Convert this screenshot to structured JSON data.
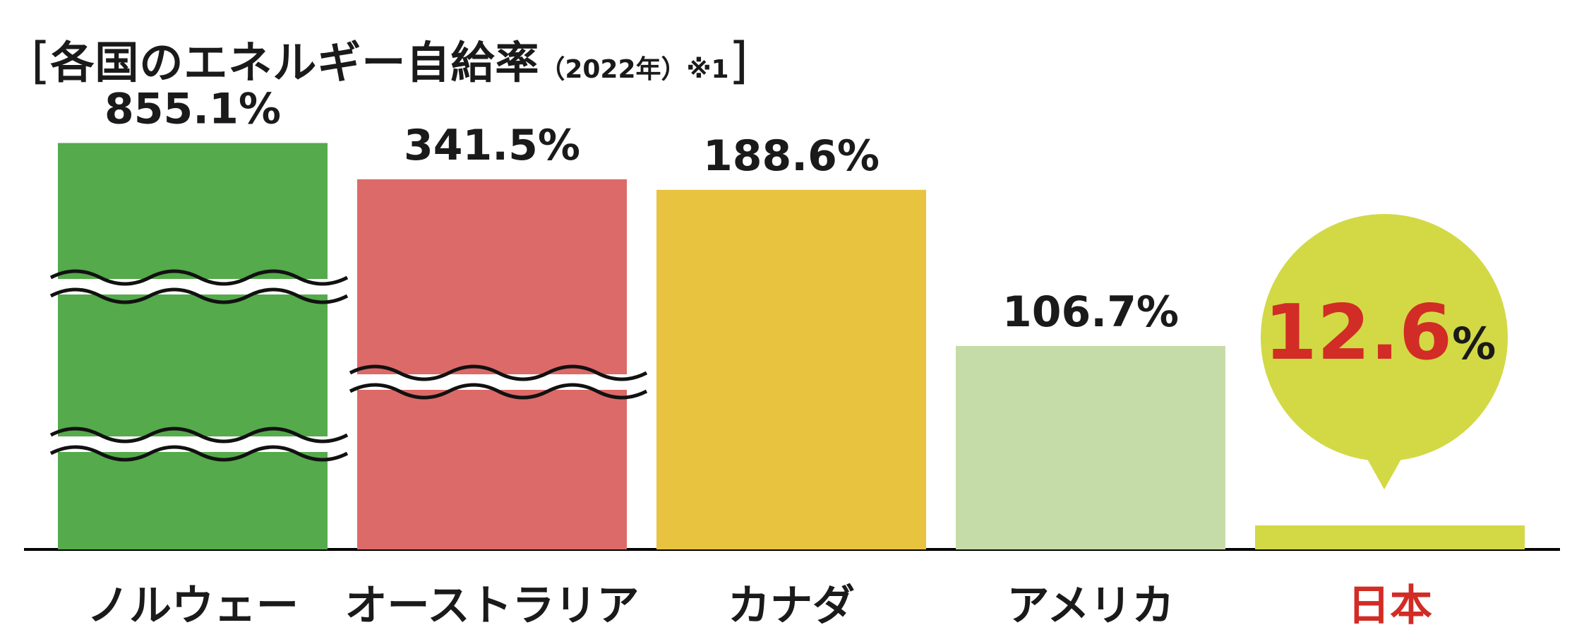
{
  "chart_data": {
    "type": "bar",
    "title": "各国のエネルギー自給率",
    "subtitle": "（2022年）※1",
    "unit": "%",
    "categories": [
      "ノルウェー",
      "オーストラリア",
      "カナダ",
      "アメリカ",
      "日本"
    ],
    "values": [
      855.1,
      341.5,
      188.6,
      106.7,
      12.6
    ],
    "value_labels": [
      "855.1%",
      "341.5%",
      "188.6%",
      "106.7%",
      "12.6%"
    ],
    "highlight": {
      "value": "12.6",
      "unit": "%"
    },
    "axis_breaks": {
      "ノルウェー": 2,
      "オーストラリア": 1
    },
    "colors": [
      "#55aa4b",
      "#dc6a68",
      "#e8c33f",
      "#c6dca8",
      "#d2d945"
    ],
    "highlight_color": "#d22c26",
    "label_color": "#1a1a1a"
  }
}
